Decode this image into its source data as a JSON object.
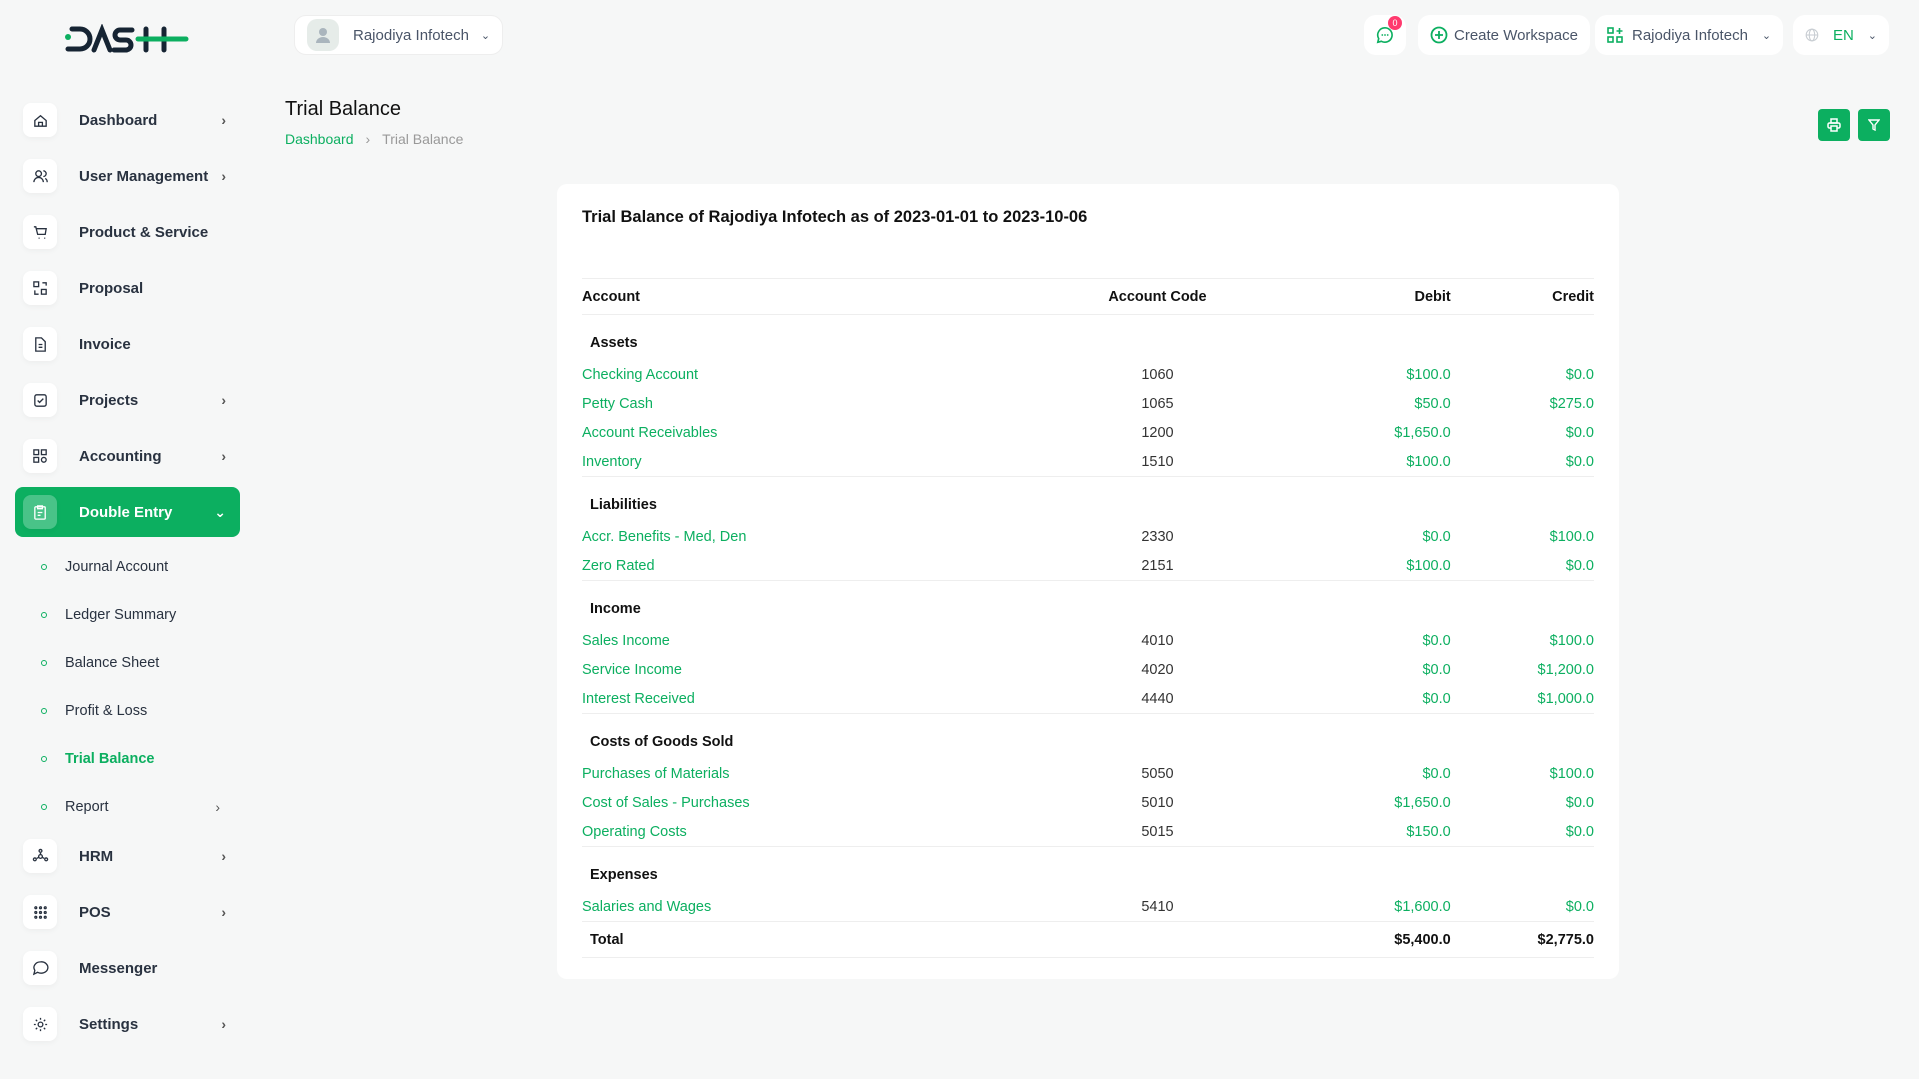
{
  "brand": {
    "logo_text": "DASH",
    "accent": "#0caf60"
  },
  "header": {
    "workspace_selector": "Rajodiya Infotech",
    "messages_badge": "0",
    "create_workspace": "Create Workspace",
    "company_selector": "Rajodiya Infotech",
    "language": "EN"
  },
  "sidebar": {
    "items": [
      {
        "label": "Dashboard",
        "icon": "home-icon",
        "chevron": true
      },
      {
        "label": "User Management",
        "icon": "users-icon",
        "chevron": true
      },
      {
        "label": "Product & Service",
        "icon": "cart-icon",
        "chevron": false
      },
      {
        "label": "Proposal",
        "icon": "proposal-icon",
        "chevron": false
      },
      {
        "label": "Invoice",
        "icon": "file-icon",
        "chevron": false
      },
      {
        "label": "Projects",
        "icon": "checkbox-icon",
        "chevron": true
      },
      {
        "label": "Accounting",
        "icon": "grid-icon",
        "chevron": true
      },
      {
        "label": "Double Entry",
        "icon": "clipboard-icon",
        "chevron": true,
        "active": true
      }
    ],
    "sub_items": [
      {
        "label": "Journal Account"
      },
      {
        "label": "Ledger Summary"
      },
      {
        "label": "Balance Sheet"
      },
      {
        "label": "Profit & Loss"
      },
      {
        "label": "Trial Balance",
        "active": true
      },
      {
        "label": "Report",
        "chevron": true
      }
    ],
    "items_after": [
      {
        "label": "HRM",
        "icon": "hrm-icon",
        "chevron": true
      },
      {
        "label": "POS",
        "icon": "dots-grid-icon",
        "chevron": true
      },
      {
        "label": "Messenger",
        "icon": "chat-icon",
        "chevron": false
      },
      {
        "label": "Settings",
        "icon": "gear-icon",
        "chevron": true
      }
    ]
  },
  "page": {
    "title": "Trial Balance",
    "breadcrumb": [
      "Dashboard",
      "Trial Balance"
    ]
  },
  "report": {
    "heading": "Trial Balance of Rajodiya Infotech as of 2023-01-01 to 2023-10-06",
    "columns": [
      "Account",
      "Account Code",
      "Debit",
      "Credit"
    ],
    "groups": [
      {
        "name": "Assets",
        "rows": [
          [
            "Checking Account",
            "1060",
            "$100.0",
            "$0.0"
          ],
          [
            "Petty Cash",
            "1065",
            "$50.0",
            "$275.0"
          ],
          [
            "Account Receivables",
            "1200",
            "$1,650.0",
            "$0.0"
          ],
          [
            "Inventory",
            "1510",
            "$100.0",
            "$0.0"
          ]
        ]
      },
      {
        "name": "Liabilities",
        "rows": [
          [
            "Accr. Benefits - Med, Den",
            "2330",
            "$0.0",
            "$100.0"
          ],
          [
            "Zero Rated",
            "2151",
            "$100.0",
            "$0.0"
          ]
        ]
      },
      {
        "name": "Income",
        "rows": [
          [
            "Sales Income",
            "4010",
            "$0.0",
            "$100.0"
          ],
          [
            "Service Income",
            "4020",
            "$0.0",
            "$1,200.0"
          ],
          [
            "Interest Received",
            "4440",
            "$0.0",
            "$1,000.0"
          ]
        ]
      },
      {
        "name": "Costs of Goods Sold",
        "rows": [
          [
            "Purchases of Materials",
            "5050",
            "$0.0",
            "$100.0"
          ],
          [
            "Cost of Sales - Purchases",
            "5010",
            "$1,650.0",
            "$0.0"
          ],
          [
            "Operating Costs",
            "5015",
            "$150.0",
            "$0.0"
          ]
        ]
      },
      {
        "name": "Expenses",
        "rows": [
          [
            "Salaries and Wages",
            "5410",
            "$1,600.0",
            "$0.0"
          ]
        ]
      }
    ],
    "total": {
      "label": "Total",
      "debit": "$5,400.0",
      "credit": "$2,775.0"
    }
  }
}
